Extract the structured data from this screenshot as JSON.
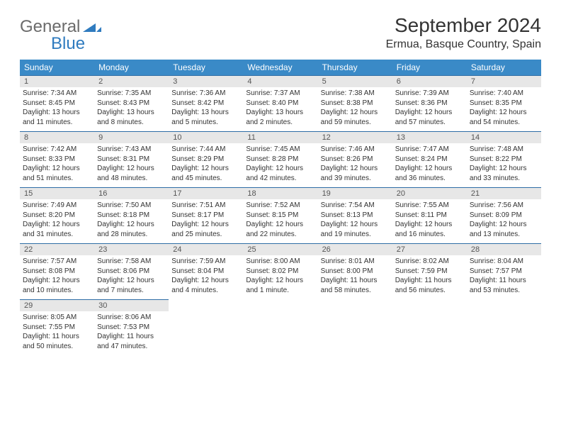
{
  "brand": {
    "part1": "General",
    "part2": "Blue"
  },
  "title": "September 2024",
  "location": "Ermua, Basque Country, Spain",
  "colors": {
    "header_bg": "#3a8ac7",
    "header_text": "#ffffff",
    "daynum_bg": "#e7e7e7",
    "daynum_border": "#2f6ea6",
    "body_text": "#333333",
    "brand_gray": "#6b6b6b",
    "brand_blue": "#2f7bbf",
    "page_bg": "#ffffff"
  },
  "typography": {
    "month_title_size": 28,
    "location_size": 16,
    "dow_size": 12,
    "daynum_size": 11,
    "cell_size": 10
  },
  "days_of_week": [
    "Sunday",
    "Monday",
    "Tuesday",
    "Wednesday",
    "Thursday",
    "Friday",
    "Saturday"
  ],
  "weeks": [
    [
      {
        "n": "1",
        "sr": "Sunrise: 7:34 AM",
        "ss": "Sunset: 8:45 PM",
        "d1": "Daylight: 13 hours",
        "d2": "and 11 minutes."
      },
      {
        "n": "2",
        "sr": "Sunrise: 7:35 AM",
        "ss": "Sunset: 8:43 PM",
        "d1": "Daylight: 13 hours",
        "d2": "and 8 minutes."
      },
      {
        "n": "3",
        "sr": "Sunrise: 7:36 AM",
        "ss": "Sunset: 8:42 PM",
        "d1": "Daylight: 13 hours",
        "d2": "and 5 minutes."
      },
      {
        "n": "4",
        "sr": "Sunrise: 7:37 AM",
        "ss": "Sunset: 8:40 PM",
        "d1": "Daylight: 13 hours",
        "d2": "and 2 minutes."
      },
      {
        "n": "5",
        "sr": "Sunrise: 7:38 AM",
        "ss": "Sunset: 8:38 PM",
        "d1": "Daylight: 12 hours",
        "d2": "and 59 minutes."
      },
      {
        "n": "6",
        "sr": "Sunrise: 7:39 AM",
        "ss": "Sunset: 8:36 PM",
        "d1": "Daylight: 12 hours",
        "d2": "and 57 minutes."
      },
      {
        "n": "7",
        "sr": "Sunrise: 7:40 AM",
        "ss": "Sunset: 8:35 PM",
        "d1": "Daylight: 12 hours",
        "d2": "and 54 minutes."
      }
    ],
    [
      {
        "n": "8",
        "sr": "Sunrise: 7:42 AM",
        "ss": "Sunset: 8:33 PM",
        "d1": "Daylight: 12 hours",
        "d2": "and 51 minutes."
      },
      {
        "n": "9",
        "sr": "Sunrise: 7:43 AM",
        "ss": "Sunset: 8:31 PM",
        "d1": "Daylight: 12 hours",
        "d2": "and 48 minutes."
      },
      {
        "n": "10",
        "sr": "Sunrise: 7:44 AM",
        "ss": "Sunset: 8:29 PM",
        "d1": "Daylight: 12 hours",
        "d2": "and 45 minutes."
      },
      {
        "n": "11",
        "sr": "Sunrise: 7:45 AM",
        "ss": "Sunset: 8:28 PM",
        "d1": "Daylight: 12 hours",
        "d2": "and 42 minutes."
      },
      {
        "n": "12",
        "sr": "Sunrise: 7:46 AM",
        "ss": "Sunset: 8:26 PM",
        "d1": "Daylight: 12 hours",
        "d2": "and 39 minutes."
      },
      {
        "n": "13",
        "sr": "Sunrise: 7:47 AM",
        "ss": "Sunset: 8:24 PM",
        "d1": "Daylight: 12 hours",
        "d2": "and 36 minutes."
      },
      {
        "n": "14",
        "sr": "Sunrise: 7:48 AM",
        "ss": "Sunset: 8:22 PM",
        "d1": "Daylight: 12 hours",
        "d2": "and 33 minutes."
      }
    ],
    [
      {
        "n": "15",
        "sr": "Sunrise: 7:49 AM",
        "ss": "Sunset: 8:20 PM",
        "d1": "Daylight: 12 hours",
        "d2": "and 31 minutes."
      },
      {
        "n": "16",
        "sr": "Sunrise: 7:50 AM",
        "ss": "Sunset: 8:18 PM",
        "d1": "Daylight: 12 hours",
        "d2": "and 28 minutes."
      },
      {
        "n": "17",
        "sr": "Sunrise: 7:51 AM",
        "ss": "Sunset: 8:17 PM",
        "d1": "Daylight: 12 hours",
        "d2": "and 25 minutes."
      },
      {
        "n": "18",
        "sr": "Sunrise: 7:52 AM",
        "ss": "Sunset: 8:15 PM",
        "d1": "Daylight: 12 hours",
        "d2": "and 22 minutes."
      },
      {
        "n": "19",
        "sr": "Sunrise: 7:54 AM",
        "ss": "Sunset: 8:13 PM",
        "d1": "Daylight: 12 hours",
        "d2": "and 19 minutes."
      },
      {
        "n": "20",
        "sr": "Sunrise: 7:55 AM",
        "ss": "Sunset: 8:11 PM",
        "d1": "Daylight: 12 hours",
        "d2": "and 16 minutes."
      },
      {
        "n": "21",
        "sr": "Sunrise: 7:56 AM",
        "ss": "Sunset: 8:09 PM",
        "d1": "Daylight: 12 hours",
        "d2": "and 13 minutes."
      }
    ],
    [
      {
        "n": "22",
        "sr": "Sunrise: 7:57 AM",
        "ss": "Sunset: 8:08 PM",
        "d1": "Daylight: 12 hours",
        "d2": "and 10 minutes."
      },
      {
        "n": "23",
        "sr": "Sunrise: 7:58 AM",
        "ss": "Sunset: 8:06 PM",
        "d1": "Daylight: 12 hours",
        "d2": "and 7 minutes."
      },
      {
        "n": "24",
        "sr": "Sunrise: 7:59 AM",
        "ss": "Sunset: 8:04 PM",
        "d1": "Daylight: 12 hours",
        "d2": "and 4 minutes."
      },
      {
        "n": "25",
        "sr": "Sunrise: 8:00 AM",
        "ss": "Sunset: 8:02 PM",
        "d1": "Daylight: 12 hours",
        "d2": "and 1 minute."
      },
      {
        "n": "26",
        "sr": "Sunrise: 8:01 AM",
        "ss": "Sunset: 8:00 PM",
        "d1": "Daylight: 11 hours",
        "d2": "and 58 minutes."
      },
      {
        "n": "27",
        "sr": "Sunrise: 8:02 AM",
        "ss": "Sunset: 7:59 PM",
        "d1": "Daylight: 11 hours",
        "d2": "and 56 minutes."
      },
      {
        "n": "28",
        "sr": "Sunrise: 8:04 AM",
        "ss": "Sunset: 7:57 PM",
        "d1": "Daylight: 11 hours",
        "d2": "and 53 minutes."
      }
    ],
    [
      {
        "n": "29",
        "sr": "Sunrise: 8:05 AM",
        "ss": "Sunset: 7:55 PM",
        "d1": "Daylight: 11 hours",
        "d2": "and 50 minutes."
      },
      {
        "n": "30",
        "sr": "Sunrise: 8:06 AM",
        "ss": "Sunset: 7:53 PM",
        "d1": "Daylight: 11 hours",
        "d2": "and 47 minutes."
      },
      null,
      null,
      null,
      null,
      null
    ]
  ]
}
